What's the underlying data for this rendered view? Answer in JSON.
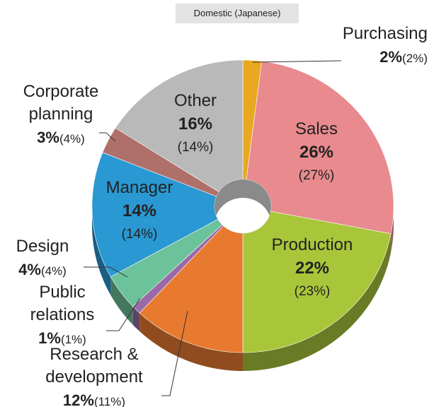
{
  "chart_data": {
    "type": "donut3d",
    "title": "Domestic (Japanese)",
    "categories": [
      "Purchasing",
      "Sales",
      "Production",
      "Research &\ndevelopment",
      "Public\nrelations",
      "Design",
      "Manager",
      "Corporate\nplanning",
      "Other"
    ],
    "values": [
      2,
      26,
      22,
      12,
      1,
      4,
      14,
      3,
      16
    ],
    "value_labels": [
      "2%",
      "26%",
      "22%",
      "12%",
      "1%",
      "4%",
      "14%",
      "3%",
      "16%"
    ],
    "previous_values": [
      2,
      27,
      23,
      11,
      1,
      4,
      14,
      4,
      14
    ],
    "previous_value_labels": [
      "(2%)",
      "(27%)",
      "(23%)",
      "(11%)",
      "(1%)",
      "(4%)",
      "(14%)",
      "(4%)",
      "(14%)"
    ],
    "colors": [
      "#e8a821",
      "#e88a8e",
      "#a9c63a",
      "#e87a30",
      "#9a6aa8",
      "#6cc29a",
      "#2a98d2",
      "#b0706a",
      "#b9b9b9"
    ]
  }
}
